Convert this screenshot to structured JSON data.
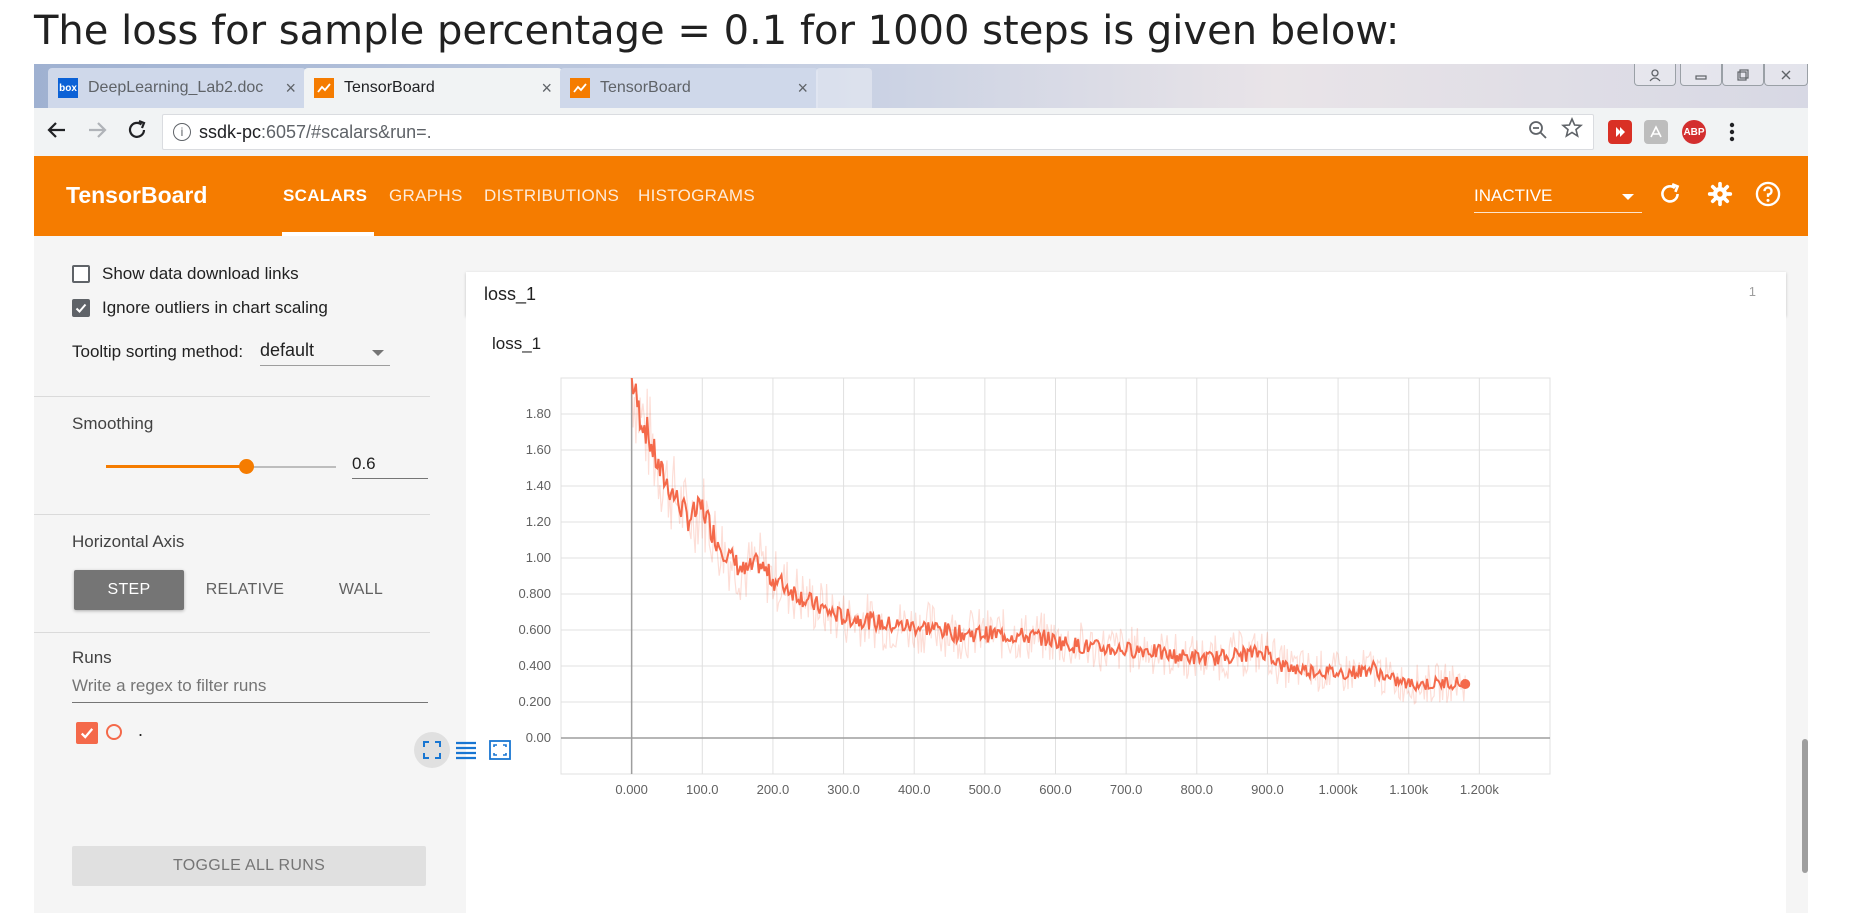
{
  "caption": "The loss for sample percentage = 0.1 for 1000 steps is given below:",
  "browser": {
    "tabs": [
      {
        "label": "DeepLearning_Lab2.doc",
        "favicon": "box-icon",
        "active": false
      },
      {
        "label": "TensorBoard",
        "favicon": "tensorboard-icon",
        "active": true
      },
      {
        "label": "TensorBoard",
        "favicon": "tensorboard-icon",
        "active": false
      }
    ],
    "close_glyph": "×",
    "url_host": "ssdk-pc",
    "url_path": ":6057/#scalars&run=.",
    "info_glyph": "i",
    "ext_abp": "ABP"
  },
  "tensorboard": {
    "brand": "TensorBoard",
    "nav_tabs": [
      "SCALARS",
      "GRAPHS",
      "DISTRIBUTIONS",
      "HISTOGRAMS"
    ],
    "active_tab": "SCALARS",
    "status_select": "INACTIVE",
    "accent": "#f57c00"
  },
  "sidebar": {
    "show_download_links": {
      "label": "Show data download links",
      "checked": false
    },
    "ignore_outliers": {
      "label": "Ignore outliers in chart scaling",
      "checked": true
    },
    "tooltip_label": "Tooltip sorting method:",
    "tooltip_value": "default",
    "smoothing_title": "Smoothing",
    "smoothing_value": "0.6",
    "smoothing_fraction": 0.6,
    "axis_title": "Horizontal Axis",
    "axis_options": [
      "STEP",
      "RELATIVE",
      "WALL"
    ],
    "axis_selected": "STEP",
    "runs_title": "Runs",
    "filter_placeholder": "Write a regex to filter runs",
    "run_name": ".",
    "toggle_label": "TOGGLE ALL RUNS"
  },
  "card": {
    "name": "loss_1",
    "count": "1"
  },
  "chart_data": {
    "type": "line",
    "title": "loss_1",
    "xlabel": "",
    "ylabel": "",
    "x_ticks": [
      "0.000",
      "100.0",
      "200.0",
      "300.0",
      "400.0",
      "500.0",
      "600.0",
      "700.0",
      "800.0",
      "900.0",
      "1.000k",
      "1.100k",
      "1.200k"
    ],
    "y_ticks": [
      "0.00",
      "0.200",
      "0.400",
      "0.600",
      "0.800",
      "1.00",
      "1.20",
      "1.40",
      "1.60",
      "1.80"
    ],
    "xlim": [
      -100,
      1300
    ],
    "ylim": [
      -0.2,
      2.0
    ],
    "grid": true,
    "series": [
      {
        "name": ".",
        "color": "#f4694a",
        "x": [
          0,
          10,
          20,
          40,
          60,
          80,
          100,
          120,
          140,
          160,
          180,
          200,
          220,
          250,
          280,
          300,
          330,
          360,
          400,
          430,
          460,
          500,
          540,
          580,
          620,
          660,
          700,
          730,
          760,
          790,
          820,
          850,
          880,
          900,
          920,
          950,
          980,
          1000,
          1030,
          1050,
          1070,
          1100,
          1130,
          1160,
          1180
        ],
        "y": [
          2.0,
          1.82,
          1.72,
          1.48,
          1.35,
          1.22,
          1.28,
          1.1,
          1.0,
          0.92,
          0.97,
          0.88,
          0.84,
          0.76,
          0.7,
          0.67,
          0.66,
          0.63,
          0.62,
          0.61,
          0.58,
          0.58,
          0.57,
          0.56,
          0.52,
          0.5,
          0.49,
          0.49,
          0.46,
          0.45,
          0.44,
          0.46,
          0.47,
          0.48,
          0.4,
          0.38,
          0.37,
          0.36,
          0.37,
          0.39,
          0.33,
          0.3,
          0.3,
          0.31,
          0.3
        ]
      }
    ]
  }
}
